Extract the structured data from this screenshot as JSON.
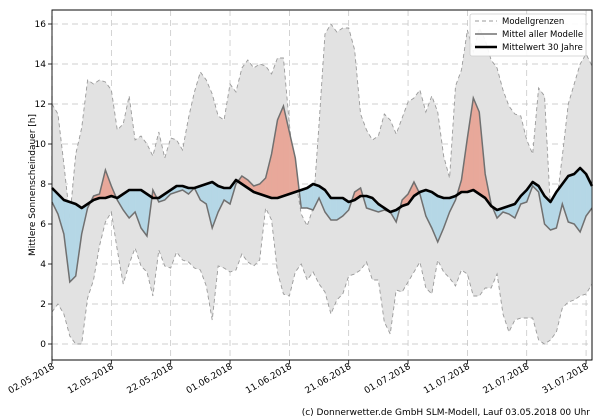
{
  "chart_data": {
    "type": "area",
    "ylabel": "Mittlere Sonnenscheindauer [h]",
    "ylim": [
      -0.8,
      16.7
    ],
    "yticks": [
      0,
      2,
      4,
      6,
      8,
      10,
      12,
      14,
      16
    ],
    "xlim": [
      0,
      91
    ],
    "xtick_labels": [
      "02.05.2018",
      "12.05.2018",
      "22.05.2018",
      "01.06.2018",
      "11.06.2018",
      "21.06.2018",
      "01.07.2018",
      "11.07.2018",
      "21.07.2018",
      "31.07.2018"
    ],
    "xtick_days": [
      0,
      10,
      20,
      30,
      40,
      50,
      60,
      70,
      80,
      90
    ],
    "legend": {
      "position": "top-right",
      "entries": [
        "Modellgrenzen",
        "Mittel aller Modelle",
        "Mittelwert 30 Jahre"
      ]
    },
    "colors": {
      "band": "#e2e2e2",
      "band_edge": "#9a9a9a",
      "mean_line": "#707070",
      "clim_line": "#000000",
      "above": "#e8a89a",
      "below": "#b5d7e6",
      "grid": "#c0c0c0"
    },
    "credit": "(c) Donnerwetter.de GmbH SLM-Modell, Lauf 03.05.2018 00 Uhr",
    "series": [
      {
        "name": "Modellgrenzen (max)",
        "values": [
          12.0,
          11.5,
          9.0,
          6.3,
          9.5,
          10.8,
          13.2,
          13.0,
          13.2,
          13.1,
          12.7,
          10.7,
          11.0,
          12.4,
          10.2,
          10.4,
          10.0,
          9.4,
          10.6,
          9.3,
          10.3,
          10.2,
          9.7,
          11.3,
          12.6,
          13.6,
          13.2,
          12.5,
          11.4,
          11.2,
          13.0,
          12.6,
          13.8,
          14.2,
          13.8,
          14.0,
          13.9,
          13.5,
          14.3,
          14.3,
          11.0,
          8.3,
          6.5,
          5.9,
          6.8,
          11.0,
          15.5,
          16.0,
          15.6,
          15.8,
          15.8,
          14.7,
          11.5,
          10.7,
          10.2,
          10.4,
          11.5,
          11.2,
          10.5,
          11.3,
          12.1,
          12.3,
          12.7,
          11.6,
          12.4,
          11.6,
          9.4,
          8.3,
          12.9,
          13.7,
          15.7,
          14.6,
          15.8,
          15.2,
          14.2,
          13.8,
          12.7,
          11.9,
          11.5,
          11.4,
          10.2,
          9.5,
          12.8,
          12.4,
          6.8,
          7.0,
          9.4,
          12.0,
          13.0,
          14.0,
          14.5,
          13.9
        ]
      },
      {
        "name": "Modellgrenzen (min)",
        "values": [
          1.6,
          2.0,
          1.5,
          0.4,
          0.0,
          0.0,
          2.3,
          3.2,
          4.9,
          6.1,
          6.6,
          4.7,
          3.0,
          4.0,
          4.8,
          3.9,
          3.6,
          2.4,
          4.7,
          3.9,
          3.8,
          4.6,
          4.2,
          4.1,
          3.8,
          3.7,
          2.9,
          1.2,
          3.9,
          3.8,
          3.6,
          3.7,
          4.5,
          4.1,
          3.9,
          4.2,
          6.8,
          6.2,
          3.6,
          2.5,
          2.4,
          3.6,
          4.0,
          3.2,
          3.6,
          3.0,
          2.6,
          1.5,
          2.2,
          2.5,
          3.4,
          3.5,
          3.7,
          4.1,
          3.2,
          3.2,
          1.1,
          0.5,
          2.7,
          2.6,
          3.1,
          3.6,
          4.1,
          2.8,
          2.5,
          4.2,
          3.6,
          3.3,
          2.9,
          3.7,
          3.5,
          2.4,
          2.4,
          2.8,
          2.8,
          3.5,
          1.5,
          0.6,
          1.2,
          1.3,
          1.3,
          1.3,
          0.2,
          0.0,
          0.2,
          0.6,
          1.8,
          2.1,
          2.2,
          2.4,
          2.5,
          3.0
        ]
      },
      {
        "name": "Mittel aller Modelle",
        "values": [
          7.1,
          6.5,
          5.5,
          3.1,
          3.4,
          5.5,
          6.8,
          7.4,
          7.5,
          8.7,
          7.9,
          7.2,
          6.7,
          6.3,
          6.6,
          5.8,
          5.4,
          7.7,
          7.1,
          7.2,
          7.5,
          7.6,
          7.7,
          7.5,
          7.8,
          7.2,
          7.0,
          5.8,
          6.6,
          7.2,
          7.0,
          8.0,
          8.4,
          8.2,
          7.9,
          8.0,
          8.3,
          9.5,
          11.2,
          11.9,
          10.6,
          9.3,
          6.8,
          6.8,
          6.7,
          7.3,
          6.6,
          6.2,
          6.2,
          6.4,
          6.7,
          7.6,
          7.8,
          6.8,
          6.7,
          6.6,
          6.7,
          6.6,
          6.1,
          7.2,
          7.5,
          8.1,
          7.5,
          6.4,
          5.8,
          5.1,
          5.8,
          6.6,
          7.2,
          8.2,
          10.3,
          12.3,
          11.6,
          8.5,
          7.0,
          6.3,
          6.6,
          6.5,
          6.3,
          7.0,
          7.1,
          7.9,
          7.6,
          6.0,
          5.7,
          5.8,
          7.0,
          6.1,
          6.0,
          5.6,
          6.4,
          6.8
        ]
      },
      {
        "name": "Mittelwert 30 Jahre",
        "values": [
          7.8,
          7.5,
          7.2,
          7.1,
          7.0,
          6.8,
          7.0,
          7.2,
          7.3,
          7.3,
          7.4,
          7.3,
          7.5,
          7.7,
          7.7,
          7.7,
          7.5,
          7.3,
          7.3,
          7.5,
          7.7,
          7.9,
          7.9,
          7.8,
          7.8,
          7.9,
          8.0,
          8.1,
          7.9,
          7.8,
          7.8,
          8.2,
          8.0,
          7.8,
          7.6,
          7.5,
          7.4,
          7.3,
          7.3,
          7.4,
          7.5,
          7.6,
          7.7,
          7.8,
          8.0,
          7.9,
          7.7,
          7.3,
          7.3,
          7.3,
          7.1,
          7.2,
          7.4,
          7.4,
          7.3,
          7.0,
          6.8,
          6.6,
          6.7,
          6.9,
          7.0,
          7.4,
          7.6,
          7.7,
          7.6,
          7.4,
          7.3,
          7.3,
          7.4,
          7.6,
          7.6,
          7.7,
          7.5,
          7.3,
          6.9,
          6.7,
          6.8,
          6.9,
          7.0,
          7.4,
          7.7,
          8.1,
          7.9,
          7.4,
          7.1,
          7.6,
          8.0,
          8.4,
          8.5,
          8.8,
          8.5,
          7.9
        ]
      }
    ]
  }
}
